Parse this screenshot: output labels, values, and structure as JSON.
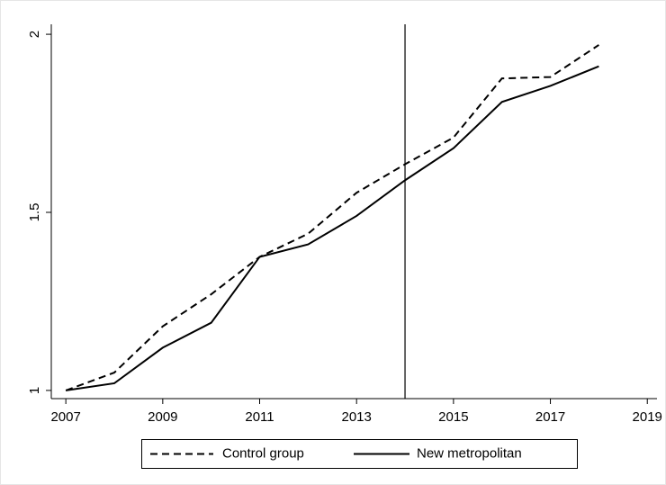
{
  "chart_data": {
    "type": "line",
    "x": [
      2007,
      2008,
      2009,
      2010,
      2011,
      2012,
      2013,
      2014,
      2015,
      2016,
      2017,
      2018
    ],
    "series": [
      {
        "name": "Control group",
        "color": "#000000",
        "dash": "dashed",
        "values": [
          1.0,
          1.05,
          1.18,
          1.27,
          1.375,
          1.44,
          1.555,
          1.635,
          1.71,
          1.876,
          1.88,
          1.97
        ]
      },
      {
        "name": "New metropolitan",
        "color": "#000000",
        "dash": "solid",
        "values": [
          1.0,
          1.02,
          1.12,
          1.19,
          1.375,
          1.41,
          1.49,
          1.59,
          1.68,
          1.81,
          1.855,
          1.91
        ]
      }
    ],
    "xlim": [
      2006.7,
      2019.2
    ],
    "xticks": [
      2007,
      2009,
      2011,
      2013,
      2015,
      2017,
      2019
    ],
    "ylim": [
      0.977,
      2.028
    ],
    "yticks": [
      1,
      1.5,
      2
    ],
    "vline": 2014,
    "grid": false,
    "legend": "bottom"
  }
}
